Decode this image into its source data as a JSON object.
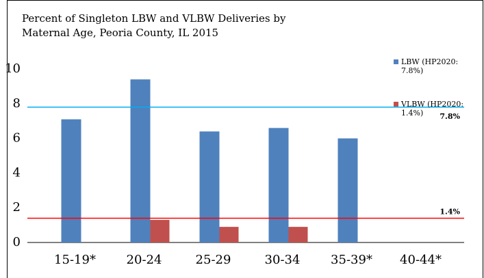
{
  "chart_data": {
    "type": "bar",
    "title": [
      "Percent of Singleton LBW and VLBW Deliveries by",
      "Maternal Age, Peoria County, IL 2015"
    ],
    "categories": [
      "15-19*",
      "20-24",
      "25-29",
      "30-34",
      "35-39*",
      "40-44*"
    ],
    "series": [
      {
        "name": "LBW (HP2020: 7.8%)",
        "color": "#4f81bd",
        "values": [
          7.1,
          9.4,
          6.4,
          6.6,
          6.0,
          null
        ]
      },
      {
        "name": "VLBW (HP2020: 1.4%)",
        "color": "#c0504d",
        "values": [
          null,
          1.3,
          0.9,
          0.9,
          null,
          null
        ]
      }
    ],
    "reference_lines": [
      {
        "value": 7.8,
        "label": "7.8%",
        "color": "#00b0f0"
      },
      {
        "value": 1.4,
        "label": "1.4%",
        "color": "#ff0000"
      }
    ],
    "ylim": [
      0,
      10
    ],
    "yticks": [
      0,
      2,
      4,
      6,
      8,
      10
    ],
    "legend": "top-right"
  }
}
